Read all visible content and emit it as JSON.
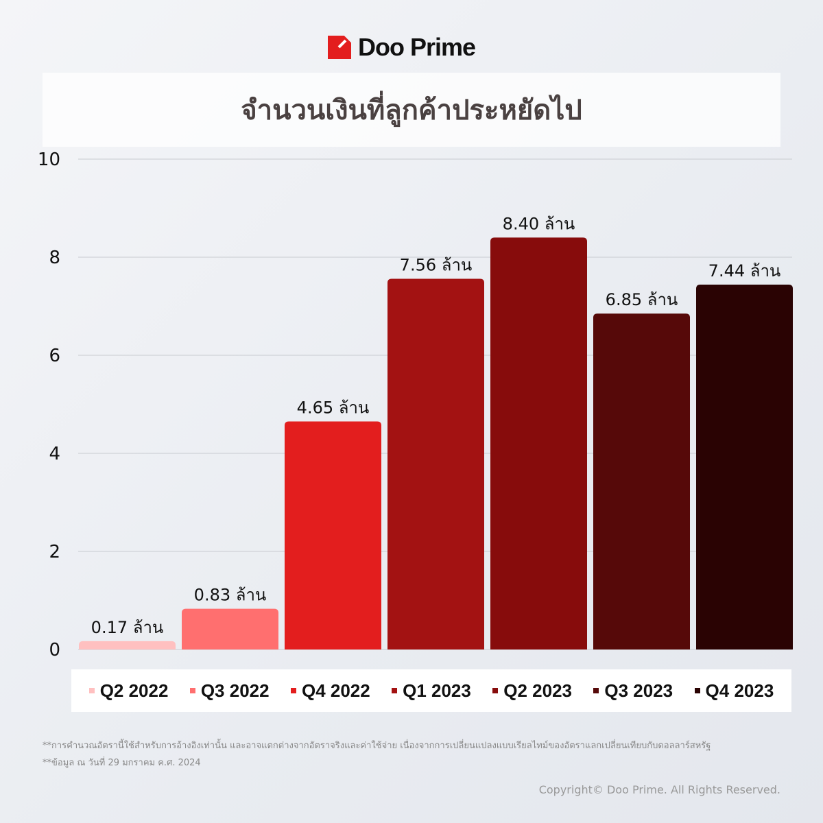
{
  "brand": {
    "name": "Doo Prime"
  },
  "chart_data": {
    "type": "bar",
    "title": "จำนวนเงินที่ลูกค้าประหยัดไป",
    "categories": [
      "Q2 2022",
      "Q3 2022",
      "Q4 2022",
      "Q1 2023",
      "Q2 2023",
      "Q3 2023",
      "Q4 2023"
    ],
    "values": [
      0.17,
      0.83,
      4.65,
      7.56,
      8.4,
      6.85,
      7.44
    ],
    "data_labels": [
      "0.17 ล้าน",
      "0.83 ล้าน",
      "4.65 ล้าน",
      "7.56 ล้าน",
      "8.40 ล้าน",
      "6.85 ล้าน",
      "7.44 ล้าน"
    ],
    "colors": [
      "#ffc0c0",
      "#ff6f6f",
      "#e31e1e",
      "#a31212",
      "#870c0c",
      "#560909",
      "#2a0303"
    ],
    "ylim": [
      0,
      10
    ],
    "yticks": [
      "0",
      "2",
      "4",
      "6",
      "8",
      "10"
    ],
    "grid": true,
    "legend_placement": "bottom"
  },
  "notes": [
    "**การคำนวณอัตรานี้ใช้สำหรับการอ้างอิงเท่านั้น และอาจแตกต่างจากอัตราจริงและค่าใช้จ่าย เนื่องจากการเปลี่ยนแปลงแบบเรียลไทม์ของอัตราแลกเปลี่ยนเทียบกับดอลลาร์สหรัฐ",
    "**ข้อมูล ณ วันที่ 29 มกราคม ค.ศ. 2024"
  ],
  "copyright": "Copyright© Doo Prime. All Rights Reserved."
}
